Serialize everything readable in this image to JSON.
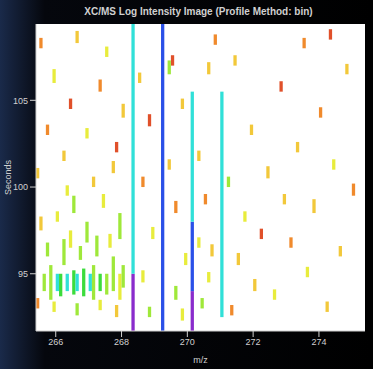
{
  "chart_data": {
    "type": "heatmap",
    "title": "XC/MS Log Intensity Image (Profile Method: bin)",
    "x_label": "m/z",
    "y_label": "Seconds",
    "xlim": [
      265.4,
      275.4
    ],
    "xticks": [
      266,
      268,
      270,
      272,
      274
    ],
    "ylim": [
      91.7,
      109.4
    ],
    "yticks": [
      95,
      100,
      105
    ],
    "clim": [
      1,
      9
    ],
    "cell_width": 0.1,
    "cells": [
      [
        268.3,
        91.7,
        95.0,
        9
      ],
      [
        268.3,
        95.0,
        109.4,
        7
      ],
      [
        269.2,
        91.7,
        109.4,
        8
      ],
      [
        270.1,
        91.7,
        94.0,
        9
      ],
      [
        270.1,
        94.0,
        98.0,
        8
      ],
      [
        270.1,
        98.0,
        105.5,
        7
      ],
      [
        271.0,
        92.5,
        105.5,
        7
      ],
      [
        265.6,
        94.0,
        95.0,
        5
      ],
      [
        265.8,
        93.5,
        95.5,
        5
      ],
      [
        266.0,
        94.0,
        95.0,
        7
      ],
      [
        266.1,
        93.7,
        95.0,
        6
      ],
      [
        266.3,
        94.0,
        95.0,
        7
      ],
      [
        266.5,
        93.8,
        95.2,
        6
      ],
      [
        266.6,
        94.0,
        95.0,
        7
      ],
      [
        266.8,
        93.7,
        95.3,
        6
      ],
      [
        267.0,
        94.0,
        95.0,
        7
      ],
      [
        267.1,
        93.5,
        95.5,
        5
      ],
      [
        267.3,
        94.0,
        95.0,
        6
      ],
      [
        267.5,
        93.8,
        95.0,
        5
      ],
      [
        267.7,
        94.0,
        96.0,
        5
      ],
      [
        267.9,
        93.5,
        95.0,
        4
      ],
      [
        268.0,
        94.2,
        95.5,
        5
      ],
      [
        265.7,
        96.0,
        96.8,
        5
      ],
      [
        266.2,
        95.5,
        97.0,
        5
      ],
      [
        266.4,
        96.5,
        97.5,
        4
      ],
      [
        266.7,
        95.8,
        96.6,
        5
      ],
      [
        266.9,
        96.8,
        98.0,
        5
      ],
      [
        267.2,
        96.0,
        97.2,
        5
      ],
      [
        267.6,
        96.5,
        97.3,
        4
      ],
      [
        267.9,
        97.0,
        98.5,
        5
      ],
      [
        266.0,
        98.0,
        98.6,
        4
      ],
      [
        265.5,
        97.5,
        98.3,
        3
      ],
      [
        266.5,
        98.5,
        99.5,
        5
      ],
      [
        267.4,
        98.8,
        99.6,
        4
      ],
      [
        265.9,
        92.8,
        93.4,
        4
      ],
      [
        266.6,
        92.6,
        93.3,
        5
      ],
      [
        267.3,
        92.9,
        93.5,
        4
      ],
      [
        267.8,
        92.5,
        93.2,
        3
      ],
      [
        265.4,
        93.0,
        93.6,
        2
      ],
      [
        270.4,
        93.0,
        93.6,
        5
      ],
      [
        270.6,
        94.5,
        95.1,
        4
      ],
      [
        270.7,
        96.0,
        96.7,
        3
      ],
      [
        271.3,
        92.6,
        93.2,
        2
      ],
      [
        271.5,
        95.5,
        96.2,
        3
      ],
      [
        271.7,
        98.0,
        98.6,
        4
      ],
      [
        272.0,
        94.0,
        94.7,
        3
      ],
      [
        272.2,
        97.0,
        97.6,
        1
      ],
      [
        272.4,
        100.5,
        101.2,
        3
      ],
      [
        272.6,
        93.5,
        94.1,
        4
      ],
      [
        272.9,
        99.0,
        99.6,
        3
      ],
      [
        273.1,
        96.5,
        97.1,
        2
      ],
      [
        273.3,
        102.0,
        102.6,
        3
      ],
      [
        273.6,
        94.8,
        95.4,
        4
      ],
      [
        273.8,
        98.5,
        99.3,
        3
      ],
      [
        274.0,
        104.0,
        104.6,
        2
      ],
      [
        274.2,
        92.8,
        93.4,
        3
      ],
      [
        274.4,
        101.0,
        101.6,
        4
      ],
      [
        274.6,
        96.0,
        96.6,
        3
      ],
      [
        274.8,
        106.5,
        107.1,
        3
      ],
      [
        275.0,
        99.5,
        100.2,
        2
      ],
      [
        271.9,
        103.0,
        103.6,
        3
      ],
      [
        272.8,
        105.5,
        106.1,
        1
      ],
      [
        273.5,
        108.0,
        108.6,
        2
      ],
      [
        274.3,
        108.5,
        109.1,
        1
      ],
      [
        271.4,
        107.0,
        107.6,
        3
      ],
      [
        270.8,
        108.2,
        108.8,
        2
      ],
      [
        271.2,
        100.0,
        100.6,
        5
      ],
      [
        265.4,
        100.5,
        101.1,
        3
      ],
      [
        265.7,
        103.0,
        103.6,
        2
      ],
      [
        265.9,
        106.0,
        106.8,
        4
      ],
      [
        266.2,
        101.5,
        102.1,
        3
      ],
      [
        266.4,
        104.5,
        105.1,
        1
      ],
      [
        266.6,
        108.3,
        109.0,
        3
      ],
      [
        266.9,
        102.8,
        103.4,
        4
      ],
      [
        267.1,
        100.0,
        100.6,
        3
      ],
      [
        267.3,
        105.5,
        106.2,
        2
      ],
      [
        267.5,
        107.5,
        108.1,
        4
      ],
      [
        267.8,
        102.0,
        102.6,
        1
      ],
      [
        268.0,
        104.0,
        104.8,
        3
      ],
      [
        265.5,
        108.0,
        108.6,
        2
      ],
      [
        266.3,
        99.5,
        100.1,
        4
      ],
      [
        267.7,
        100.8,
        101.5,
        3
      ],
      [
        268.5,
        106.0,
        106.6,
        3
      ],
      [
        268.6,
        100.0,
        100.6,
        2
      ],
      [
        268.8,
        103.5,
        104.2,
        1
      ],
      [
        268.9,
        97.0,
        97.7,
        4
      ],
      [
        269.4,
        101.0,
        101.6,
        3
      ],
      [
        269.5,
        107.0,
        107.6,
        1
      ],
      [
        269.6,
        98.5,
        99.2,
        2
      ],
      [
        269.8,
        104.5,
        105.1,
        3
      ],
      [
        269.9,
        95.5,
        96.2,
        4
      ],
      [
        270.3,
        101.5,
        102.1,
        3
      ],
      [
        270.5,
        99.0,
        99.6,
        2
      ],
      [
        270.6,
        106.5,
        107.2,
        3
      ],
      [
        268.6,
        94.5,
        95.2,
        4
      ],
      [
        268.8,
        92.5,
        93.1,
        5
      ],
      [
        269.6,
        93.5,
        94.3,
        5
      ],
      [
        269.8,
        92.3,
        93.0,
        4
      ],
      [
        270.3,
        96.5,
        97.1,
        4
      ],
      [
        269.4,
        106.5,
        107.3,
        5
      ]
    ]
  }
}
